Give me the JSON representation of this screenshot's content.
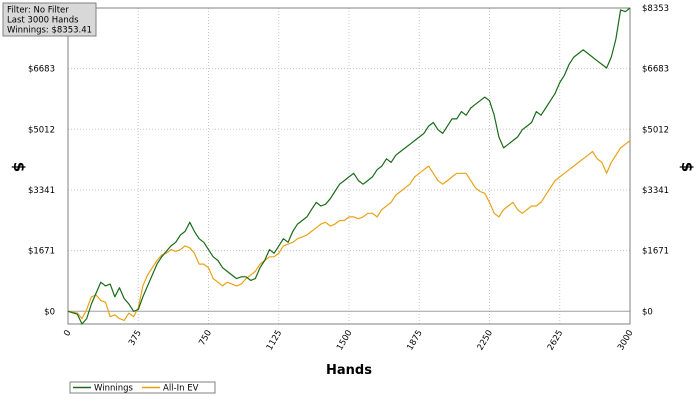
{
  "filter_box": {
    "line1": "Filter: No Filter",
    "line2": "Last  3000 Hands",
    "line3": "Winnings: $8353.41"
  },
  "chart_data": {
    "type": "line",
    "xlabel": "Hands",
    "ylabel": "$",
    "ylabel_right": "$",
    "xlim": [
      0,
      3000
    ],
    "ylim": [
      -350,
      8353
    ],
    "x_ticks": [
      0,
      375,
      750,
      1125,
      1500,
      1875,
      2250,
      2625,
      3000
    ],
    "x_tick_labels": [
      "0",
      "375",
      "750",
      "1125",
      "1500",
      "1875",
      "2250",
      "2625",
      "3000"
    ],
    "y_ticks": [
      0,
      1671,
      3341,
      5012,
      6683,
      8353
    ],
    "y_tick_labels": [
      "$0",
      "$1671",
      "$3341",
      "$5012",
      "$6683",
      "$8353"
    ],
    "grid": true,
    "legend": "bottom-left",
    "series": [
      {
        "name": "Winnings",
        "color": "#1a6b1a",
        "x": [
          0,
          50,
          75,
          100,
          125,
          150,
          175,
          200,
          225,
          250,
          275,
          300,
          325,
          350,
          375,
          400,
          425,
          450,
          475,
          500,
          525,
          550,
          575,
          600,
          625,
          650,
          675,
          700,
          725,
          750,
          775,
          800,
          825,
          850,
          875,
          900,
          925,
          950,
          975,
          1000,
          1025,
          1050,
          1075,
          1100,
          1125,
          1150,
          1175,
          1200,
          1225,
          1250,
          1275,
          1300,
          1325,
          1350,
          1375,
          1400,
          1425,
          1450,
          1475,
          1500,
          1525,
          1550,
          1575,
          1600,
          1625,
          1650,
          1675,
          1700,
          1725,
          1750,
          1775,
          1800,
          1825,
          1850,
          1875,
          1900,
          1925,
          1950,
          1975,
          2000,
          2025,
          2050,
          2075,
          2100,
          2125,
          2150,
          2175,
          2200,
          2225,
          2250,
          2275,
          2300,
          2325,
          2350,
          2375,
          2400,
          2425,
          2450,
          2475,
          2500,
          2525,
          2550,
          2575,
          2600,
          2625,
          2650,
          2675,
          2700,
          2725,
          2750,
          2775,
          2800,
          2825,
          2850,
          2875,
          2900,
          2925,
          2950,
          2975,
          3000
        ],
        "values": [
          0,
          -80,
          -350,
          -200,
          200,
          500,
          800,
          700,
          750,
          400,
          650,
          350,
          200,
          0,
          50,
          400,
          700,
          1000,
          1300,
          1500,
          1650,
          1800,
          1900,
          2100,
          2200,
          2450,
          2200,
          2000,
          1900,
          1700,
          1500,
          1400,
          1200,
          1100,
          1000,
          900,
          950,
          950,
          850,
          900,
          1200,
          1400,
          1700,
          1600,
          1800,
          2000,
          1900,
          2200,
          2400,
          2500,
          2600,
          2800,
          3000,
          2900,
          2950,
          3100,
          3300,
          3500,
          3600,
          3700,
          3800,
          3600,
          3500,
          3600,
          3700,
          3900,
          4000,
          4200,
          4100,
          4300,
          4400,
          4500,
          4600,
          4700,
          4800,
          4900,
          5100,
          5200,
          5000,
          4900,
          5100,
          5300,
          5300,
          5500,
          5400,
          5600,
          5700,
          5800,
          5900,
          5800,
          5400,
          4800,
          4500,
          4600,
          4700,
          4800,
          5000,
          5100,
          5200,
          5500,
          5400,
          5600,
          5800,
          6000,
          6300,
          6500,
          6800,
          7000,
          7100,
          7200,
          7100,
          7000,
          6900,
          6800,
          6700,
          7000,
          7500,
          8300,
          8250,
          8353
        ]
      },
      {
        "name": "All-In EV",
        "color": "#e8a317",
        "x": [
          0,
          50,
          75,
          100,
          125,
          150,
          175,
          200,
          225,
          250,
          275,
          300,
          325,
          350,
          375,
          400,
          425,
          450,
          475,
          500,
          525,
          550,
          575,
          600,
          625,
          650,
          675,
          700,
          725,
          750,
          775,
          800,
          825,
          850,
          875,
          900,
          925,
          950,
          975,
          1000,
          1025,
          1050,
          1075,
          1100,
          1125,
          1150,
          1175,
          1200,
          1225,
          1250,
          1275,
          1300,
          1325,
          1350,
          1375,
          1400,
          1425,
          1450,
          1475,
          1500,
          1525,
          1550,
          1575,
          1600,
          1625,
          1650,
          1675,
          1700,
          1725,
          1750,
          1775,
          1800,
          1825,
          1850,
          1875,
          1900,
          1925,
          1950,
          1975,
          2000,
          2025,
          2050,
          2075,
          2100,
          2125,
          2150,
          2175,
          2200,
          2225,
          2250,
          2275,
          2300,
          2325,
          2350,
          2375,
          2400,
          2425,
          2450,
          2475,
          2500,
          2525,
          2550,
          2575,
          2600,
          2625,
          2650,
          2675,
          2700,
          2725,
          2750,
          2775,
          2800,
          2825,
          2850,
          2875,
          2900,
          2925,
          2950,
          2975,
          3000
        ],
        "values": [
          0,
          -50,
          -200,
          50,
          400,
          450,
          300,
          250,
          -150,
          -100,
          -200,
          -250,
          -50,
          -150,
          100,
          700,
          1000,
          1200,
          1400,
          1550,
          1600,
          1700,
          1650,
          1700,
          1800,
          1750,
          1600,
          1300,
          1300,
          1200,
          900,
          800,
          700,
          800,
          750,
          700,
          750,
          900,
          1000,
          1100,
          1300,
          1400,
          1500,
          1500,
          1600,
          1800,
          1850,
          1900,
          2000,
          2050,
          2100,
          2200,
          2300,
          2400,
          2450,
          2350,
          2400,
          2500,
          2500,
          2600,
          2600,
          2550,
          2600,
          2700,
          2700,
          2600,
          2800,
          2900,
          3000,
          3200,
          3300,
          3400,
          3500,
          3700,
          3800,
          3900,
          4000,
          3800,
          3600,
          3500,
          3600,
          3700,
          3800,
          3800,
          3800,
          3600,
          3400,
          3300,
          3250,
          3000,
          2700,
          2600,
          2800,
          2900,
          3000,
          2800,
          2700,
          2800,
          2900,
          2900,
          3000,
          3200,
          3400,
          3600,
          3700,
          3800,
          3900,
          4000,
          4100,
          4200,
          4300,
          4400,
          4200,
          4100,
          3800,
          4100,
          4300,
          4500,
          4600,
          4700
        ]
      }
    ]
  }
}
